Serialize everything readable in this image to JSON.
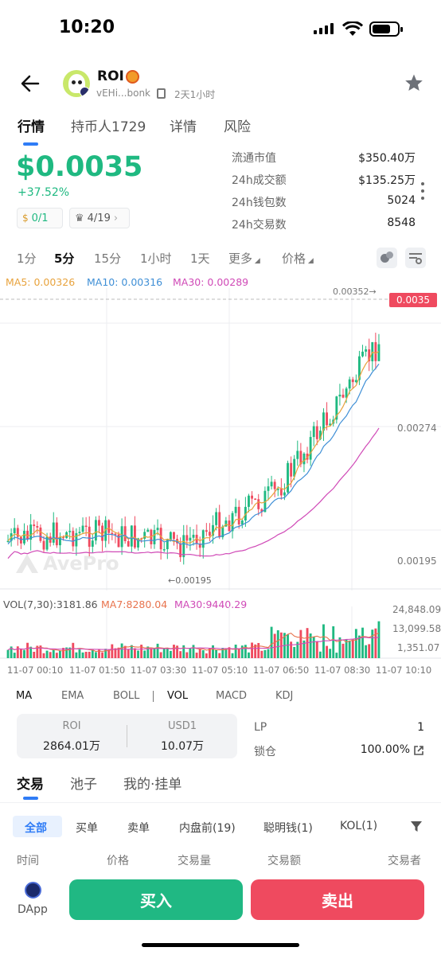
{
  "status_bar": {
    "time": "10:20"
  },
  "token": {
    "symbol": "ROI",
    "address": "vEHi...bonk",
    "age": "2天1小时"
  },
  "tabs": [
    "行情",
    "持币人1729",
    "详情",
    "风险"
  ],
  "price": {
    "value": "$0.0035",
    "change": "+37.52%",
    "change_color": "#1fb981"
  },
  "badges": {
    "money": "0/1",
    "crown": "4/19"
  },
  "stats": [
    {
      "label": "流通市值",
      "value": "$350.40万"
    },
    {
      "label": "24h成交额",
      "value": "$135.25万"
    },
    {
      "label": "24h钱包数",
      "value": "5024"
    },
    {
      "label": "24h交易数",
      "value": "8548"
    }
  ],
  "intervals": [
    "1分",
    "5分",
    "15分",
    "1小时",
    "1天",
    "更多",
    "价格"
  ],
  "ma_legend": {
    "ma5": "MA5: 0.00326",
    "ma10": "MA10: 0.00316",
    "ma30": "MA30: 0.00289"
  },
  "colors": {
    "up": "#1fb981",
    "down": "#ef4a5f",
    "ma5": "#e8a33d",
    "ma10": "#3f8fd6",
    "ma30": "#d04ab7",
    "buy": "#20b883",
    "sell": "#ef4a5f"
  },
  "chart_data": {
    "type": "candlestick",
    "price_axis": [
      "0.00274",
      "0.00195"
    ],
    "current_price": "0.0035",
    "high_marker": "0.00352",
    "low_marker": "0.00195",
    "watermark": "AvePro",
    "volume_axis": [
      "24,848.09",
      "13,099.58",
      "1,351.07"
    ],
    "volume_legend": {
      "vol": "VOL(7,30):3181.86",
      "ma7": "MA7:8280.04",
      "ma30": "MA30:9440.29"
    },
    "x_labels": [
      "11-07 00:10",
      "11-07 01:50",
      "11-07 03:30",
      "11-07 05:10",
      "11-07 06:50",
      "11-07 08:30",
      "11-07 10:10"
    ]
  },
  "indicators": [
    "MA",
    "EMA",
    "BOLL",
    "VOL",
    "MACD",
    "KDJ"
  ],
  "liquidity": {
    "token_label": "ROI",
    "token_amount": "2864.01万",
    "usd_label": "USD1",
    "usd_amount": "10.07万",
    "lp_label": "LP",
    "lp_value": "1",
    "lock_label": "锁仓",
    "lock_value": "100.00%"
  },
  "sub_tabs": [
    "交易",
    "池子",
    "我的·挂单"
  ],
  "filters": [
    "全部",
    "买单",
    "卖单",
    "内盘前(19)",
    "聪明钱(1)",
    "KOL(1)"
  ],
  "columns": [
    "时间",
    "价格",
    "交易量",
    "交易额",
    "交易者"
  ],
  "bottom": {
    "dapp": "DApp",
    "buy": "买入",
    "sell": "卖出"
  }
}
